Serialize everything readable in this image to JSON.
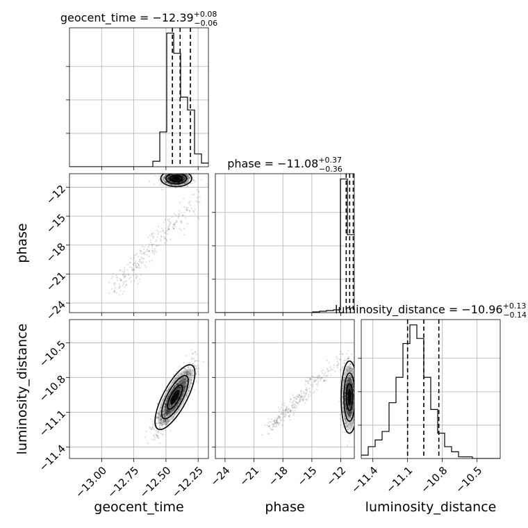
{
  "chart_data": {
    "type": "corner",
    "parameters": [
      "geocent_time",
      "phase",
      "luminosity_distance"
    ],
    "titles": [
      {
        "prefix": "geocent_time = −12.39",
        "upper": "+0.08",
        "lower": "−0.06"
      },
      {
        "prefix": "phase = −11.08",
        "upper": "+0.37",
        "lower": "−0.36"
      },
      {
        "prefix": "luminosity_distance = −10.96",
        "upper": "+0.13",
        "lower": "−0.14"
      }
    ],
    "ranges": [
      [
        -13.25,
        -12.17
      ],
      [
        -25.0,
        -10.6
      ],
      [
        -11.5,
        -10.3
      ]
    ],
    "ticks": [
      {
        "values": [
          -13.0,
          -12.75,
          -12.5,
          -12.25
        ],
        "labels": [
          "−13.00",
          "−12.75",
          "−12.50",
          "−12.25"
        ]
      },
      {
        "values": [
          -24,
          -21,
          -18,
          -15,
          -12
        ],
        "labels": [
          "−24",
          "−21",
          "−18",
          "−15",
          "−12"
        ]
      },
      {
        "values": [
          -11.4,
          -11.1,
          -10.8,
          -10.5
        ],
        "labels": [
          "−11.4",
          "−11.1",
          "−10.8",
          "−10.5"
        ]
      }
    ],
    "quantiles": [
      [
        -12.45,
        -12.39,
        -12.31
      ],
      [
        -11.44,
        -11.08,
        -10.71
      ],
      [
        -11.1,
        -10.96,
        -10.83
      ]
    ],
    "histograms": [
      {
        "bins_start": -13.25,
        "bin_width": 0.054,
        "counts": [
          0,
          0,
          0,
          0,
          0,
          0,
          0,
          0,
          0,
          0,
          0,
          0,
          0.03,
          0.19,
          0.73,
          0.62,
          0.38,
          0.31,
          0.07,
          0.02
        ]
      },
      {
        "bins_start": -25.0,
        "bin_width": 0.72,
        "counts": [
          0,
          0,
          0,
          0,
          0,
          0,
          0,
          0,
          0,
          0,
          0,
          0,
          0,
          0,
          0.005,
          0.01,
          0.015,
          0.02,
          0.96,
          0.56
        ]
      },
      {
        "bins_start": -11.5,
        "bin_width": 0.06,
        "counts": [
          0.02,
          0.07,
          0.11,
          0.16,
          0.33,
          0.48,
          0.68,
          0.79,
          0.71,
          0.48,
          0.29,
          0.15,
          0.07,
          0.04,
          0.01,
          0.01,
          0,
          0,
          0,
          0
        ]
      }
    ],
    "pair_distributions": [
      {
        "x": 0,
        "y": 1,
        "x_mean": -12.42,
        "x_std": 0.05,
        "y_mean": -11.1,
        "y_std": 0.35,
        "tail_x": [
          -12.9,
          -12.2
        ],
        "tail_y": [
          -22.5,
          -12.2
        ]
      },
      {
        "x": 0,
        "y": 2,
        "x_mean": -12.43,
        "x_std": 0.07,
        "y_mean": -10.97,
        "y_std": 0.13,
        "correlation": 0.82
      },
      {
        "x": 1,
        "y": 2,
        "x_mean": -11.1,
        "x_std": 0.36,
        "y_mean": -10.97,
        "y_std": 0.13,
        "tail_x": [
          -19.5,
          -11.6
        ],
        "tail_y": [
          -11.25,
          -10.6
        ]
      }
    ]
  }
}
